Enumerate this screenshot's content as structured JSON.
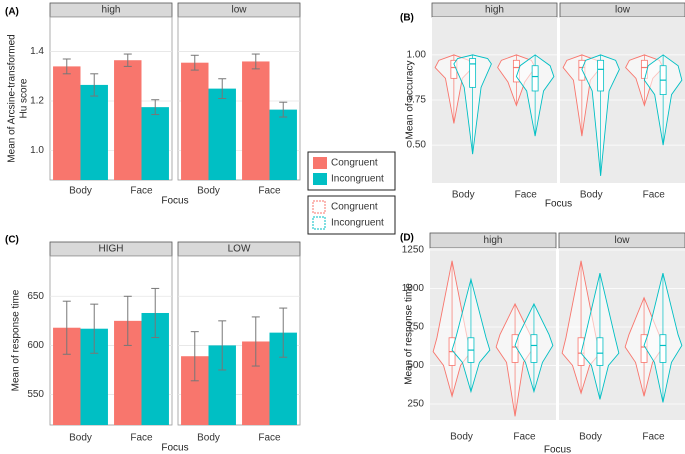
{
  "chart_data": [
    {
      "type": "bar",
      "panel_label": "(A)",
      "ylabel": [
        "Mean of Arcsine-transformed",
        "Hu score"
      ],
      "xlabel": "Focus",
      "categories": [
        "Body",
        "Face"
      ],
      "series": [
        {
          "name": "Congruent",
          "color": "#f8766d"
        },
        {
          "name": "Incongruent",
          "color": "#00bfc4"
        }
      ],
      "facets": [
        {
          "label": "high",
          "values": [
            [
              1.34,
              1.365
            ],
            [
              1.265,
              1.175
            ]
          ],
          "errors": [
            [
              0.03,
              0.025
            ],
            [
              0.045,
              0.03
            ]
          ]
        },
        {
          "label": "low",
          "values": [
            [
              1.355,
              1.36
            ],
            [
              1.25,
              1.165
            ]
          ],
          "errors": [
            [
              0.03,
              0.03
            ],
            [
              0.04,
              0.03
            ]
          ]
        }
      ],
      "ylim": [
        0.88,
        1.54
      ],
      "yticks": [
        {
          "value": 1.0,
          "label": "1.0"
        },
        1.2,
        1.4
      ],
      "grid": true
    },
    {
      "type": "violin",
      "panel_label": "(B)",
      "ylabel": [
        "Mean of accuracy"
      ],
      "xlabel": "Focus",
      "categories": [
        "Body",
        "Face"
      ],
      "series": [
        {
          "name": "Congruent",
          "color": "#f8766d"
        },
        {
          "name": "Incongruent",
          "color": "#00bfc4"
        }
      ],
      "facets": [
        {
          "label": "high",
          "min": [
            [
              0.62,
              0.72
            ],
            [
              0.45,
              0.55
            ]
          ],
          "q1": [
            [
              0.87,
              0.85
            ],
            [
              0.82,
              0.8
            ]
          ],
          "median": [
            [
              0.93,
              0.93
            ],
            [
              0.95,
              0.88
            ]
          ],
          "q3": [
            [
              0.97,
              0.97
            ],
            [
              0.98,
              0.94
            ]
          ],
          "max": [
            [
              1.0,
              1.0
            ],
            [
              1.0,
              1.0
            ]
          ]
        },
        {
          "label": "low",
          "min": [
            [
              0.55,
              0.72
            ],
            [
              0.33,
              0.5
            ]
          ],
          "q1": [
            [
              0.86,
              0.87
            ],
            [
              0.8,
              0.78
            ]
          ],
          "median": [
            [
              0.93,
              0.93
            ],
            [
              0.92,
              0.86
            ]
          ],
          "q3": [
            [
              0.97,
              0.97
            ],
            [
              0.97,
              0.94
            ]
          ],
          "max": [
            [
              1.0,
              1.0
            ],
            [
              1.0,
              1.0
            ]
          ]
        }
      ],
      "ylim": [
        0.29,
        1.21
      ],
      "yticks": [
        {
          "value": 0.5,
          "label": "0.50"
        },
        0.75,
        {
          "value": 1.0,
          "label": "1.00"
        }
      ],
      "grid": true
    },
    {
      "type": "bar",
      "panel_label": "(C)",
      "ylabel": [
        "Mean of response time"
      ],
      "xlabel": "Focus",
      "categories": [
        "Body",
        "Face"
      ],
      "series": [
        {
          "name": "Congruent",
          "color": "#f8766d"
        },
        {
          "name": "Incongruent",
          "color": "#00bfc4"
        }
      ],
      "facets": [
        {
          "label": "HIGH",
          "values": [
            [
              618,
              625
            ],
            [
              617,
              633
            ]
          ],
          "errors": [
            [
              27,
              25
            ],
            [
              25,
              25
            ]
          ]
        },
        {
          "label": "LOW",
          "values": [
            [
              589,
              604
            ],
            [
              600,
              613
            ]
          ],
          "errors": [
            [
              25,
              25
            ],
            [
              25,
              25
            ]
          ]
        }
      ],
      "ylim": [
        519,
        691
      ],
      "yticks": [
        550,
        600,
        650
      ],
      "grid": true
    },
    {
      "type": "violin",
      "panel_label": "(D)",
      "ylabel": [
        "Mean of response time"
      ],
      "xlabel": "Focus",
      "categories": [
        "Body",
        "Face"
      ],
      "series": [
        {
          "name": "Congruent",
          "color": "#f8766d"
        },
        {
          "name": "Incongruent",
          "color": "#00bfc4"
        }
      ],
      "facets": [
        {
          "label": "high",
          "min": [
            [
              300,
              170
            ],
            [
              330,
              330
            ]
          ],
          "q1": [
            [
              500,
              520
            ],
            [
              520,
              520
            ]
          ],
          "median": [
            [
              590,
              620
            ],
            [
              600,
              630
            ]
          ],
          "q3": [
            [
              680,
              700
            ],
            [
              680,
              700
            ]
          ],
          "max": [
            [
              1180,
              900
            ],
            [
              1060,
              900
            ]
          ]
        },
        {
          "label": "low",
          "min": [
            [
              320,
              300
            ],
            [
              280,
              260
            ]
          ],
          "q1": [
            [
              500,
              520
            ],
            [
              500,
              520
            ]
          ],
          "median": [
            [
              580,
              620
            ],
            [
              580,
              630
            ]
          ],
          "q3": [
            [
              680,
              700
            ],
            [
              680,
              700
            ]
          ],
          "max": [
            [
              1180,
              940
            ],
            [
              1100,
              1100
            ]
          ]
        }
      ],
      "ylim": [
        146,
        1263
      ],
      "yticks": [
        250,
        500,
        750,
        1000,
        1250
      ],
      "grid": true
    }
  ]
}
